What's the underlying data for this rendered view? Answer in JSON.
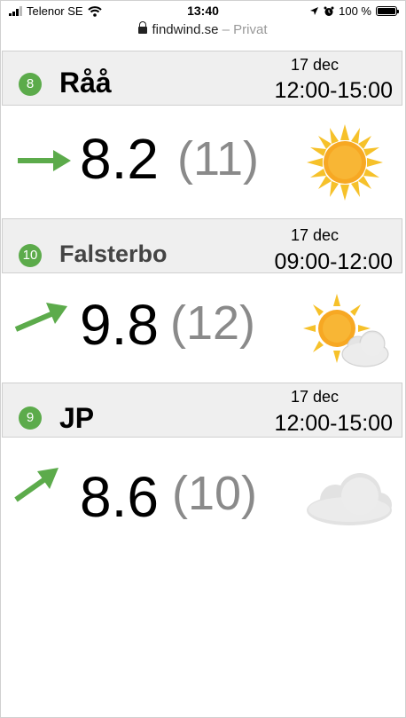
{
  "status_bar": {
    "carrier": "Telenor SE",
    "time": "13:40",
    "battery": "100 %"
  },
  "url_bar": {
    "domain": "findwind.se",
    "mode": "– Privat"
  },
  "spots": [
    {
      "rank": "8",
      "name": "Råå",
      "date": "17 dec",
      "time_range": "12:00-15:00",
      "wind": "8.2",
      "gust": "(11)",
      "weather_icon": "sun-icon"
    },
    {
      "rank": "10",
      "name": "Falsterbo",
      "date": "17 dec",
      "time_range": "09:00-12:00",
      "wind": "9.8",
      "gust": "(12)",
      "weather_icon": "partly-cloudy-icon"
    },
    {
      "rank": "9",
      "name": "JP",
      "date": "17 dec",
      "time_range": "12:00-15:00",
      "wind": "8.6",
      "gust": "(10)",
      "weather_icon": "cloud-icon"
    }
  ],
  "colors": {
    "badge": "#5cab4b",
    "arrow": "#5cab4b",
    "gust": "#8a8a8a",
    "header_bg": "#efefef"
  }
}
